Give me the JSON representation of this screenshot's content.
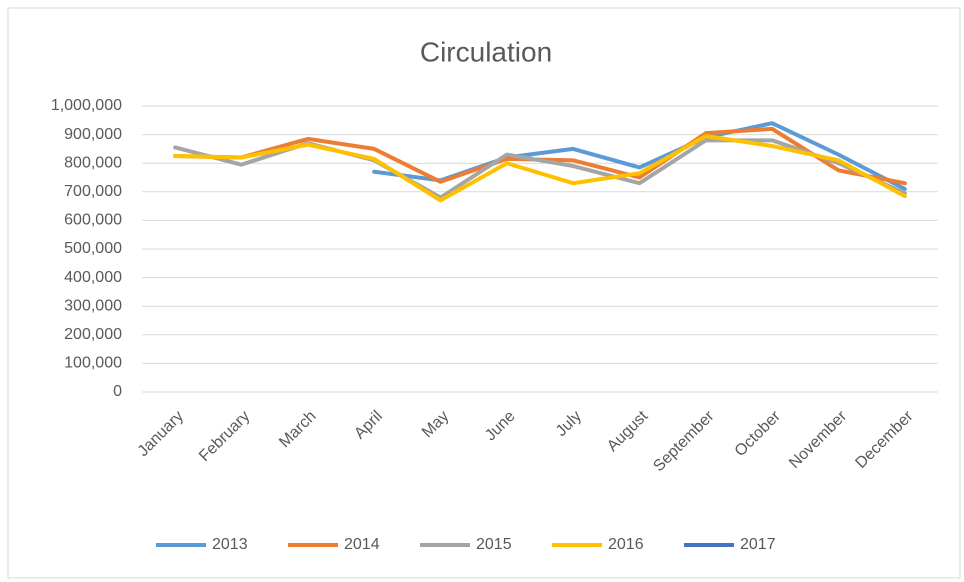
{
  "chart_data": {
    "type": "line",
    "title": "Circulation",
    "categories": [
      "January",
      "February",
      "March",
      "April",
      "May",
      "June",
      "July",
      "August",
      "September",
      "October",
      "November",
      "December"
    ],
    "series": [
      {
        "name": "2013",
        "color": "#5b9bd5",
        "values": [
          null,
          null,
          null,
          770000,
          740000,
          820000,
          850000,
          785000,
          890000,
          940000,
          830000,
          710000
        ]
      },
      {
        "name": "2014",
        "color": "#ed7d31",
        "values": [
          825000,
          820000,
          885000,
          850000,
          735000,
          815000,
          810000,
          750000,
          905000,
          920000,
          775000,
          730000
        ]
      },
      {
        "name": "2015",
        "color": "#a5a5a5",
        "values": [
          855000,
          795000,
          870000,
          810000,
          680000,
          830000,
          790000,
          730000,
          880000,
          880000,
          800000,
          695000
        ]
      },
      {
        "name": "2016",
        "color": "#ffc000",
        "values": [
          825000,
          820000,
          865000,
          815000,
          670000,
          800000,
          730000,
          765000,
          895000,
          860000,
          810000,
          685000
        ]
      },
      {
        "name": "2017",
        "color": "#4472c4",
        "values": [
          null,
          null,
          null,
          null,
          null,
          null,
          null,
          null,
          null,
          null,
          null,
          null
        ]
      }
    ],
    "ylim": [
      0,
      1000000
    ],
    "yticks": [
      0,
      {
        "value": 100000,
        "label": "100,000"
      },
      {
        "value": 200000,
        "label": "200,000"
      },
      {
        "value": 300000,
        "label": "300,000"
      },
      {
        "value": 400000,
        "label": "400,000"
      },
      {
        "value": 500000,
        "label": "500,000"
      },
      {
        "value": 600000,
        "label": "600,000"
      },
      {
        "value": 700000,
        "label": "700,000"
      },
      {
        "value": 800000,
        "label": "800,000"
      },
      {
        "value": 900000,
        "label": "900,000"
      },
      {
        "value": 1000000,
        "label": "1,000,000"
      }
    ],
    "grid": true,
    "legend": "bottom"
  }
}
